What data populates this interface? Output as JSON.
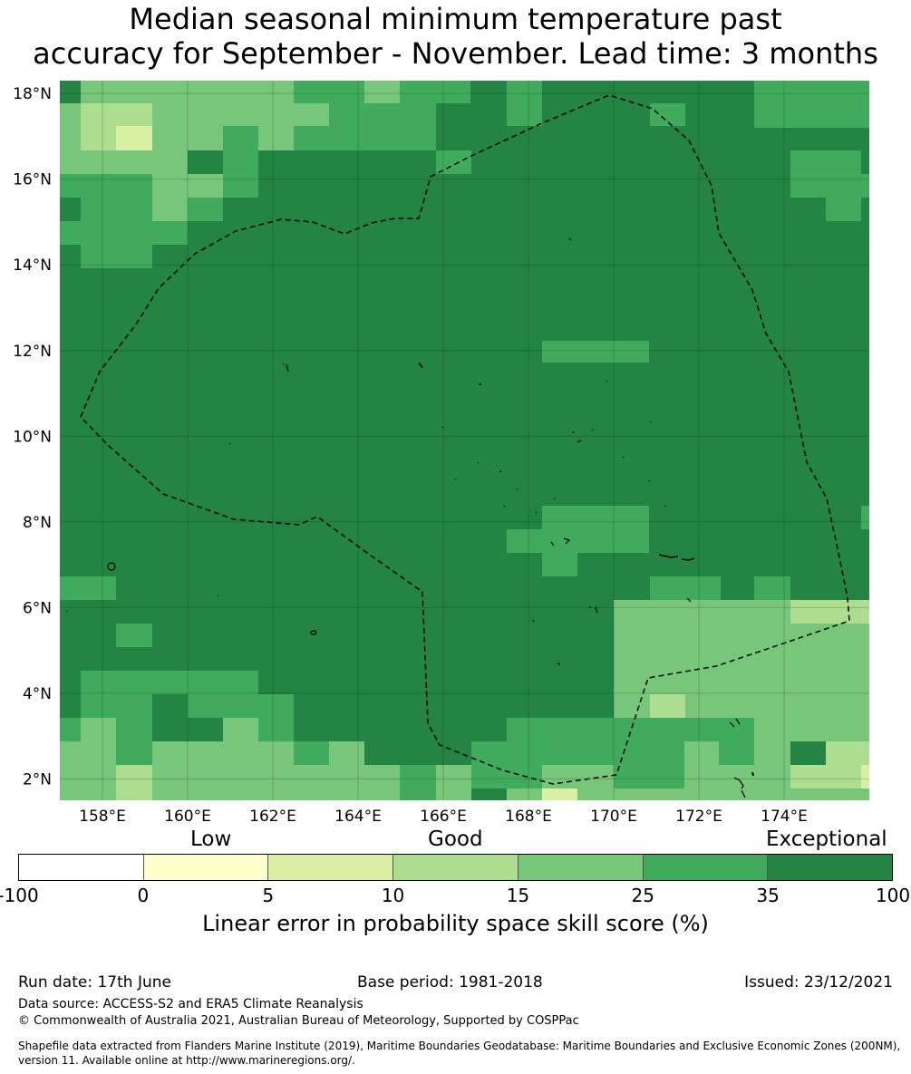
{
  "title_line1": "Median seasonal minimum temperature past",
  "title_line2": "accuracy for September - November. Lead time: 3 months",
  "map": {
    "lon_labels": [
      "158°E",
      "160°E",
      "162°E",
      "164°E",
      "166°E",
      "168°E",
      "170°E",
      "172°E",
      "174°E"
    ],
    "lat_labels": [
      "18°N",
      "16°N",
      "14°N",
      "12°N",
      "10°N",
      "8°N",
      "6°N",
      "4°N",
      "2°N"
    ],
    "lon_values": [
      158,
      160,
      162,
      164,
      166,
      168,
      170,
      172,
      174
    ],
    "lat_values": [
      18,
      16,
      14,
      12,
      10,
      8,
      6,
      4,
      2
    ],
    "lon_range": [
      157,
      176
    ],
    "lat_range": [
      1.5,
      18.3
    ],
    "boundary": "dashed",
    "gridlines": true
  },
  "legend": {
    "categories": [
      "Low",
      "Good",
      "Exceptional"
    ],
    "boundaries": [
      "-100",
      "0",
      "5",
      "10",
      "15",
      "25",
      "35",
      "100"
    ],
    "colors": [
      "#ffffff",
      "#ffffcc",
      "#d9f0a3",
      "#addd8e",
      "#78c679",
      "#41ab5d",
      "#238443"
    ],
    "title": "Linear error in probability space skill score (%)"
  },
  "footer": {
    "run_date": "Run date: 17th June",
    "base_period": "Base period: 1981-2018",
    "issued": "Issued: 23/12/2021",
    "data_source": "Data source: ACCESS-S2 and ERA5 Climate Reanalysis",
    "copyright": "© Commonwealth of Australia 2021, Australian Bureau of Meteorology, Supported by COSPPac",
    "shapefile_line1": "Shapefile data extracted from Flanders Marine Institute (2019), Maritime Boundaries Geodatabase: Maritime Boundaries and Exclusive Economic Zones (200NM),",
    "shapefile_line2": "version 11. Available online at http://www.marineregions.org/."
  }
}
